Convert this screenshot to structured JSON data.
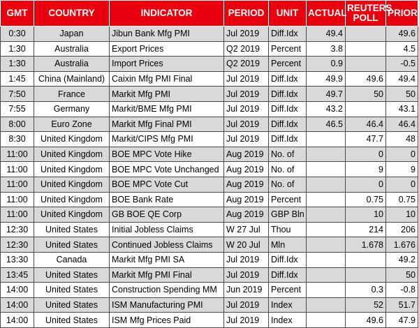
{
  "headers": {
    "gmt": "GMT",
    "country": "COUNTRY",
    "indicator": "INDICATOR",
    "period": "PERIOD",
    "unit": "UNIT",
    "actual": "ACTUAL",
    "poll": "REUTERS\nPOLL",
    "prior": "PRIOR"
  },
  "colors": {
    "header_bg": "#e8000e",
    "header_text": "#ffffff",
    "shaded_row": "#d9d9d9",
    "plain_row": "#ffffff"
  },
  "rows": [
    {
      "gmt": "0:30",
      "country": "Japan",
      "indicator": "Jibun Bank Mfg PMI",
      "period": "Jul 2019",
      "unit": "Diff.Idx",
      "actual": "49.4",
      "poll": "",
      "prior": "49.6",
      "shaded": true
    },
    {
      "gmt": "1:30",
      "country": "Australia",
      "indicator": "Export Prices",
      "period": "Q2 2019",
      "unit": "Percent",
      "actual": "3.8",
      "poll": "",
      "prior": "4.5",
      "shaded": false
    },
    {
      "gmt": "1:30",
      "country": "Australia",
      "indicator": "Import Prices",
      "period": "Q2 2019",
      "unit": "Percent",
      "actual": "0.9",
      "poll": "",
      "prior": "-0.5",
      "shaded": true
    },
    {
      "gmt": "1:45",
      "country": "China (Mainland)",
      "indicator": "Caixin Mfg PMI Final",
      "period": "Jul 2019",
      "unit": "Diff.Idx",
      "actual": "49.9",
      "poll": "49.6",
      "prior": "49.4",
      "shaded": false
    },
    {
      "gmt": "7:50",
      "country": "France",
      "indicator": "Markit Mfg PMI",
      "period": "Jul 2019",
      "unit": "Diff.Idx",
      "actual": "49.7",
      "poll": "50",
      "prior": "50",
      "shaded": true
    },
    {
      "gmt": "7:55",
      "country": "Germany",
      "indicator": "Markit/BME Mfg PMI",
      "period": "Jul 2019",
      "unit": "Diff.Idx",
      "actual": "43.2",
      "poll": "",
      "prior": "43.1",
      "shaded": false
    },
    {
      "gmt": "8:00",
      "country": "Euro Zone",
      "indicator": "Markit Mfg Final PMI",
      "period": "Jul 2019",
      "unit": "Diff.Idx",
      "actual": "46.5",
      "poll": "46.4",
      "prior": "46.4",
      "shaded": true
    },
    {
      "gmt": "8:30",
      "country": "United Kingdom",
      "indicator": "Markit/CIPS Mfg PMI",
      "period": "Jul 2019",
      "unit": "Diff.Idx",
      "actual": "",
      "poll": "47.7",
      "prior": "48",
      "shaded": false
    },
    {
      "gmt": "11:00",
      "country": "United Kingdom",
      "indicator": "BOE MPC Vote Hike",
      "period": "Aug 2019",
      "unit": "No. of",
      "actual": "",
      "poll": "0",
      "prior": "0",
      "shaded": true
    },
    {
      "gmt": "11:00",
      "country": "United Kingdom",
      "indicator": "BOE MPC Vote Unchanged",
      "period": "Aug 2019",
      "unit": "No. of",
      "actual": "",
      "poll": "9",
      "prior": "9",
      "shaded": false
    },
    {
      "gmt": "11:00",
      "country": "United Kingdom",
      "indicator": "BOE MPC Vote Cut",
      "period": "Aug 2019",
      "unit": "No. of",
      "actual": "",
      "poll": "0",
      "prior": "0",
      "shaded": true
    },
    {
      "gmt": "11:00",
      "country": "United Kingdom",
      "indicator": "BOE Bank Rate",
      "period": "Aug 2019",
      "unit": "Percent",
      "actual": "",
      "poll": "0.75",
      "prior": "0.75",
      "shaded": false
    },
    {
      "gmt": "11:00",
      "country": "United Kingdom",
      "indicator": "GB BOE QE Corp",
      "period": "Aug 2019",
      "unit": "GBP Bln",
      "actual": "",
      "poll": "10",
      "prior": "10",
      "shaded": true
    },
    {
      "gmt": "12:30",
      "country": "United States",
      "indicator": "Initial Jobless Claims",
      "period": "W 27 Jul",
      "unit": "Thou",
      "actual": "",
      "poll": "214",
      "prior": "206",
      "shaded": false
    },
    {
      "gmt": "12:30",
      "country": "United States",
      "indicator": "Continued Jobless Claims",
      "period": "W 20 Jul",
      "unit": "Mln",
      "actual": "",
      "poll": "1.678",
      "prior": "1.676",
      "shaded": true
    },
    {
      "gmt": "13:30",
      "country": "Canada",
      "indicator": "Markit Mfg PMI SA",
      "period": "Jul 2019",
      "unit": "Diff.Idx",
      "actual": "",
      "poll": "",
      "prior": "49.2",
      "shaded": false
    },
    {
      "gmt": "13:45",
      "country": "United States",
      "indicator": "Markit Mfg PMI Final",
      "period": "Jul 2019",
      "unit": "Diff.Idx",
      "actual": "",
      "poll": "",
      "prior": "50",
      "shaded": true
    },
    {
      "gmt": "14:00",
      "country": "United States",
      "indicator": "Construction Spending MM",
      "period": "Jun 2019",
      "unit": "Percent",
      "actual": "",
      "poll": "0.3",
      "prior": "-0.8",
      "shaded": false
    },
    {
      "gmt": "14:00",
      "country": "United States",
      "indicator": "ISM Manufacturing PMI",
      "period": "Jul 2019",
      "unit": "Index",
      "actual": "",
      "poll": "52",
      "prior": "51.7",
      "shaded": true
    },
    {
      "gmt": "14:00",
      "country": "United States",
      "indicator": "ISM Mfg Prices Paid",
      "period": "Jul 2019",
      "unit": "Index",
      "actual": "",
      "poll": "49.6",
      "prior": "47.9",
      "shaded": false
    }
  ]
}
